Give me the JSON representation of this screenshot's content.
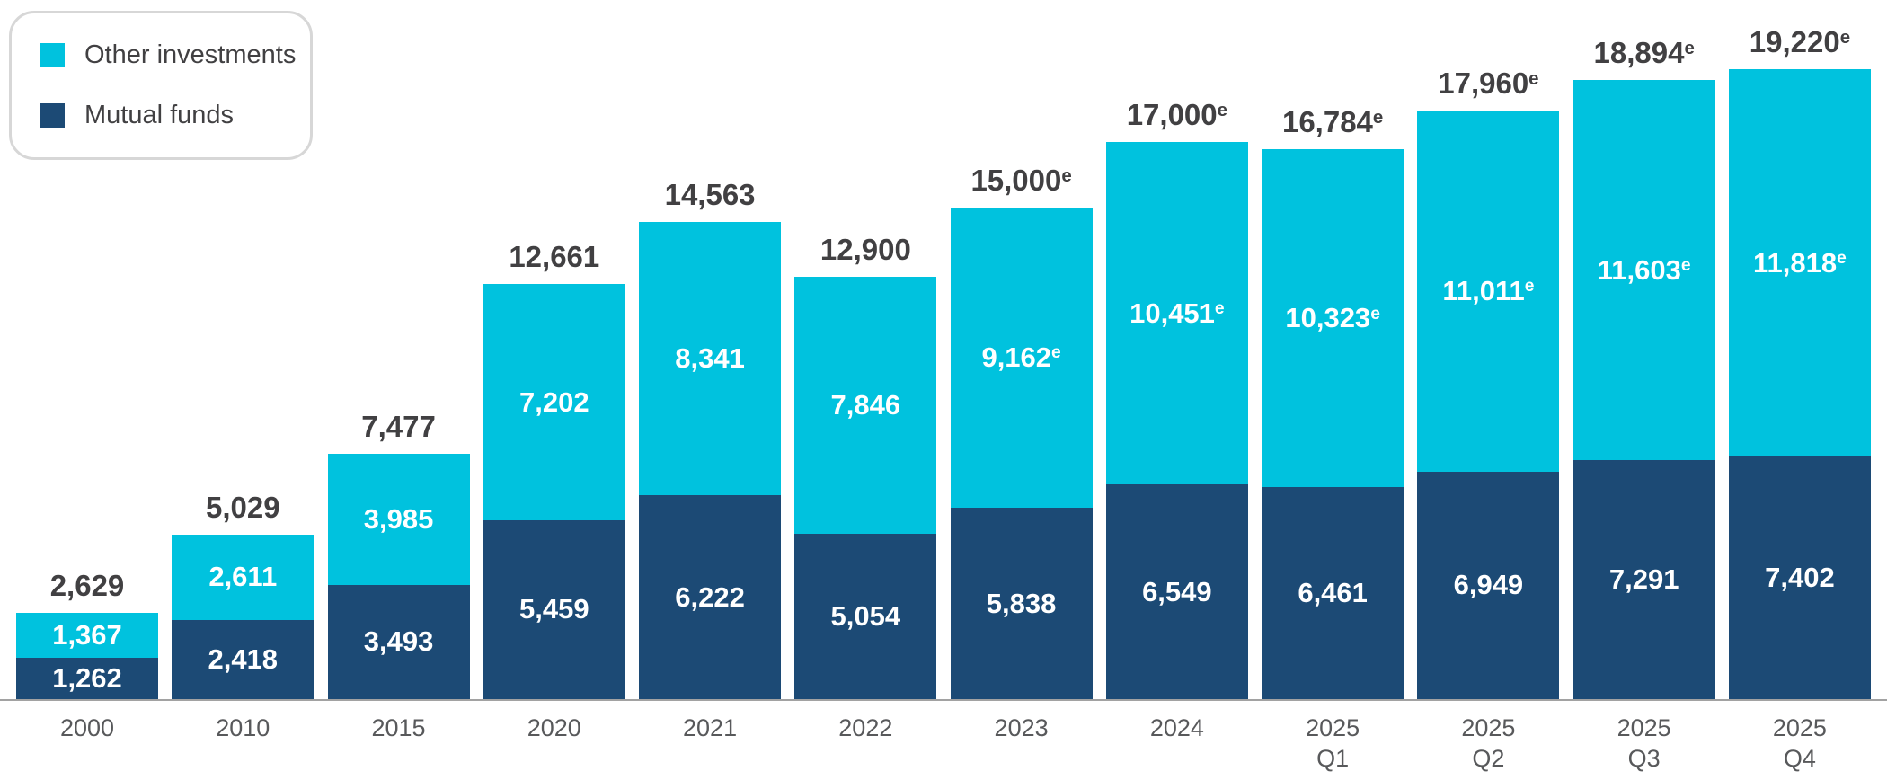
{
  "colors": {
    "other": "#00C2DE",
    "mutual": "#1C4A75",
    "total_label_text": "#414042",
    "segment_label_text": "#FFFFFF",
    "axis_label_text": "#58595B",
    "axis_line": "#A2A2A2",
    "legend_border": "#D7D7D7",
    "legend_text": "#414042",
    "background": "#FFFFFF"
  },
  "legend": {
    "items": [
      {
        "label": "Other investments",
        "color_key": "other"
      },
      {
        "label": "Mutual funds",
        "color_key": "mutual"
      }
    ]
  },
  "chart_data": {
    "type": "bar",
    "stacked": true,
    "ylim": [
      0,
      19220
    ],
    "grid": false,
    "legend_position": "top-left",
    "estimate_marker": "e",
    "series_names": [
      "Mutual funds",
      "Other investments"
    ],
    "bars": [
      {
        "category": [
          "2000"
        ],
        "total": {
          "value": 2629,
          "label": "2,629",
          "estimate": false
        },
        "other": {
          "value": 1367,
          "label": "1,367",
          "estimate": false
        },
        "mutual": {
          "value": 1262,
          "label": "1,262",
          "estimate": false
        }
      },
      {
        "category": [
          "2010"
        ],
        "total": {
          "value": 5029,
          "label": "5,029",
          "estimate": false
        },
        "other": {
          "value": 2611,
          "label": "2,611",
          "estimate": false
        },
        "mutual": {
          "value": 2418,
          "label": "2,418",
          "estimate": false
        }
      },
      {
        "category": [
          "2015"
        ],
        "total": {
          "value": 7477,
          "label": "7,477",
          "estimate": false
        },
        "other": {
          "value": 3985,
          "label": "3,985",
          "estimate": false
        },
        "mutual": {
          "value": 3493,
          "label": "3,493",
          "estimate": false
        }
      },
      {
        "category": [
          "2020"
        ],
        "total": {
          "value": 12661,
          "label": "12,661",
          "estimate": false
        },
        "other": {
          "value": 7202,
          "label": "7,202",
          "estimate": false
        },
        "mutual": {
          "value": 5459,
          "label": "5,459",
          "estimate": false
        }
      },
      {
        "category": [
          "2021"
        ],
        "total": {
          "value": 14563,
          "label": "14,563",
          "estimate": false
        },
        "other": {
          "value": 8341,
          "label": "8,341",
          "estimate": false
        },
        "mutual": {
          "value": 6222,
          "label": "6,222",
          "estimate": false
        }
      },
      {
        "category": [
          "2022"
        ],
        "total": {
          "value": 12900,
          "label": "12,900",
          "estimate": false
        },
        "other": {
          "value": 7846,
          "label": "7,846",
          "estimate": false
        },
        "mutual": {
          "value": 5054,
          "label": "5,054",
          "estimate": false
        }
      },
      {
        "category": [
          "2023"
        ],
        "total": {
          "value": 15000,
          "label": "15,000",
          "estimate": true
        },
        "other": {
          "value": 9162,
          "label": "9,162",
          "estimate": true
        },
        "mutual": {
          "value": 5838,
          "label": "5,838",
          "estimate": false
        }
      },
      {
        "category": [
          "2024"
        ],
        "total": {
          "value": 17000,
          "label": "17,000",
          "estimate": true
        },
        "other": {
          "value": 10451,
          "label": "10,451",
          "estimate": true
        },
        "mutual": {
          "value": 6549,
          "label": "6,549",
          "estimate": false
        }
      },
      {
        "category": [
          "2025",
          "Q1"
        ],
        "total": {
          "value": 16784,
          "label": "16,784",
          "estimate": true
        },
        "other": {
          "value": 10323,
          "label": "10,323",
          "estimate": true
        },
        "mutual": {
          "value": 6461,
          "label": "6,461",
          "estimate": false
        }
      },
      {
        "category": [
          "2025",
          "Q2"
        ],
        "total": {
          "value": 17960,
          "label": "17,960",
          "estimate": true
        },
        "other": {
          "value": 11011,
          "label": "11,011",
          "estimate": true
        },
        "mutual": {
          "value": 6949,
          "label": "6,949",
          "estimate": false
        }
      },
      {
        "category": [
          "2025",
          "Q3"
        ],
        "total": {
          "value": 18894,
          "label": "18,894",
          "estimate": true
        },
        "other": {
          "value": 11603,
          "label": "11,603",
          "estimate": true
        },
        "mutual": {
          "value": 7291,
          "label": "7,291",
          "estimate": false
        }
      },
      {
        "category": [
          "2025",
          "Q4"
        ],
        "total": {
          "value": 19220,
          "label": "19,220",
          "estimate": true
        },
        "other": {
          "value": 11818,
          "label": "11,818",
          "estimate": true
        },
        "mutual": {
          "value": 7402,
          "label": "7,402",
          "estimate": false
        }
      }
    ]
  }
}
